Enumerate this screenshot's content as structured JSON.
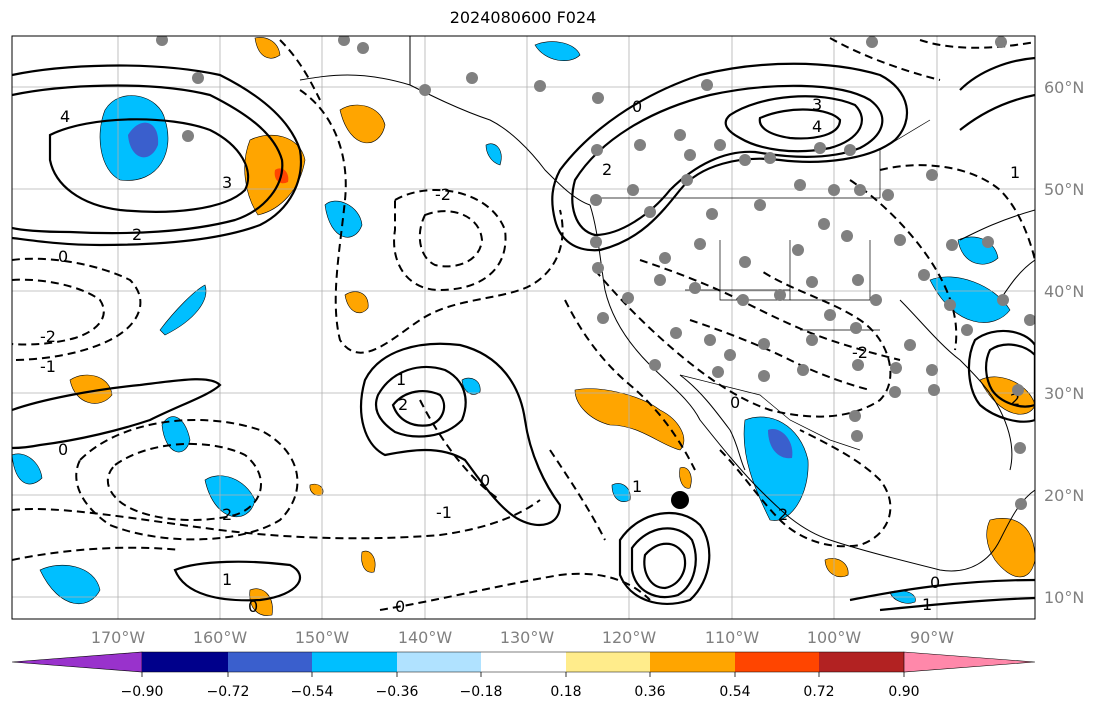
{
  "title": "2024080600 F024",
  "lon_labels": [
    "170°W",
    "160°W",
    "150°W",
    "140°W",
    "130°W",
    "120°W",
    "110°W",
    "100°W",
    "90°W"
  ],
  "lat_labels": [
    "60°N",
    "50°N",
    "40°N",
    "30°N",
    "20°N",
    "10°N"
  ],
  "colorbar": {
    "colors": [
      "#9932cc",
      "#00008b",
      "#3a5fcd",
      "#00bfff",
      "#b0e2ff",
      "#ffffff",
      "#ffec8b",
      "#ffa500",
      "#ff4500",
      "#b22222",
      "#ff88aa"
    ],
    "tick_labels": [
      "−0.90",
      "−0.72",
      "−0.54",
      "−0.36",
      "−0.18",
      "0.18",
      "0.36",
      "0.54",
      "0.72",
      "0.90"
    ]
  },
  "contour_labels": [
    "4",
    "3",
    "2",
    "0",
    "-2",
    "-1",
    "0",
    "2",
    "1",
    "0",
    "3",
    "4",
    "2",
    "0",
    "1",
    "2",
    "-2",
    "-1",
    "2",
    "0",
    "1",
    "0",
    "-2",
    "2",
    "1",
    "0",
    "0",
    "1"
  ],
  "markers": {
    "station_color": "#808080",
    "storm_color": "#000000"
  }
}
